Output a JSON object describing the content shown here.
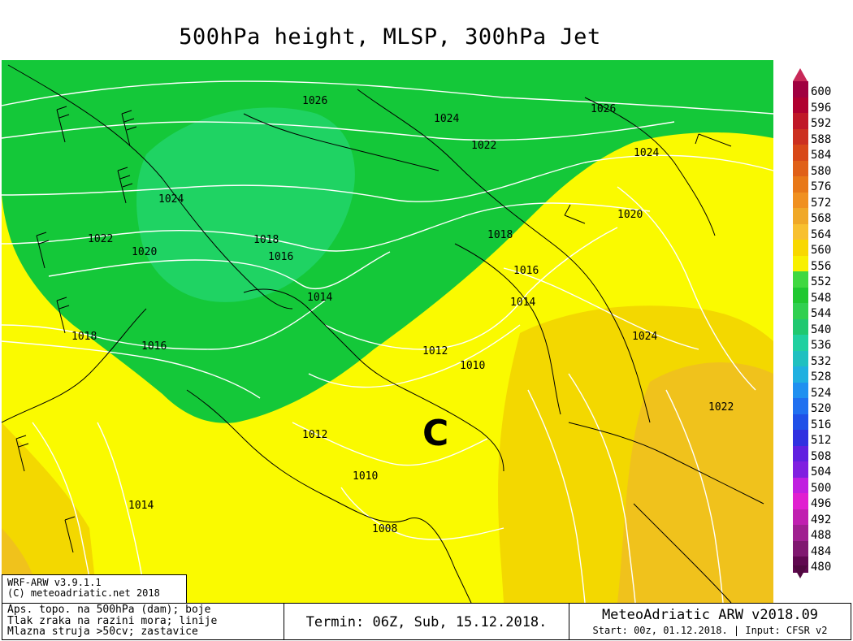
{
  "title": "500hPa height, MLSP, 300hPa Jet",
  "legend": {
    "levels": [
      "600",
      "596",
      "592",
      "588",
      "584",
      "580",
      "576",
      "572",
      "568",
      "564",
      "560",
      "556",
      "552",
      "548",
      "544",
      "540",
      "536",
      "532",
      "528",
      "524",
      "520",
      "516",
      "512",
      "508",
      "504",
      "500",
      "496",
      "492",
      "488",
      "484",
      "480"
    ],
    "colors": [
      "#a00040",
      "#b00030",
      "#c01828",
      "#cc3020",
      "#d84818",
      "#e06018",
      "#e87818",
      "#f09020",
      "#f0a828",
      "#f8c030",
      "#f8d800",
      "#f8f000",
      "#40d840",
      "#20c830",
      "#30d050",
      "#20c870",
      "#20d0a0",
      "#20c0c0",
      "#20b0e0",
      "#2090f0",
      "#2070f0",
      "#2050e8",
      "#3030e0",
      "#6020e0",
      "#8020e0",
      "#c020e0",
      "#e020d0",
      "#c020b0",
      "#a02090",
      "#801870",
      "#600850"
    ],
    "top_arrow_color": "#c82858",
    "bottom_arrow_color": "#500840"
  },
  "map": {
    "center_label": "C",
    "isobar_labels": [
      "1026",
      "1024",
      "1026",
      "1024",
      "1022",
      "1024",
      "1022",
      "1020",
      "1020",
      "1018",
      "1018",
      "1016",
      "1016",
      "1014",
      "1014",
      "1016",
      "1018",
      "1012",
      "1010",
      "1024",
      "1022",
      "1012",
      "1010",
      "1008",
      "1014",
      "1016"
    ],
    "colors": {
      "green_light": "#1fd363",
      "green": "#14c839",
      "yellow": "#fafa00",
      "gold": "#f3d800",
      "orange": "#f0c21c",
      "contour": "#ffffff",
      "coast": "#000000"
    }
  },
  "footer": {
    "model_line1": "WRF-ARW v3.9.1.1",
    "model_line2": "(C) meteoadriatic.net 2018",
    "desc_line1": "Aps. topo. na 500hPa (dam); boje",
    "desc_line2": "Tlak zraka na razini mora; linije",
    "desc_line3": "Mlazna struja >50cv; zastavice",
    "termin": "Termin: 06Z, Sub, 15.12.2018.",
    "brand": "MeteoAdriatic ARW v2018.09",
    "start": "Start: 00z, 01.12.2018. | Input: CFSR v2"
  }
}
